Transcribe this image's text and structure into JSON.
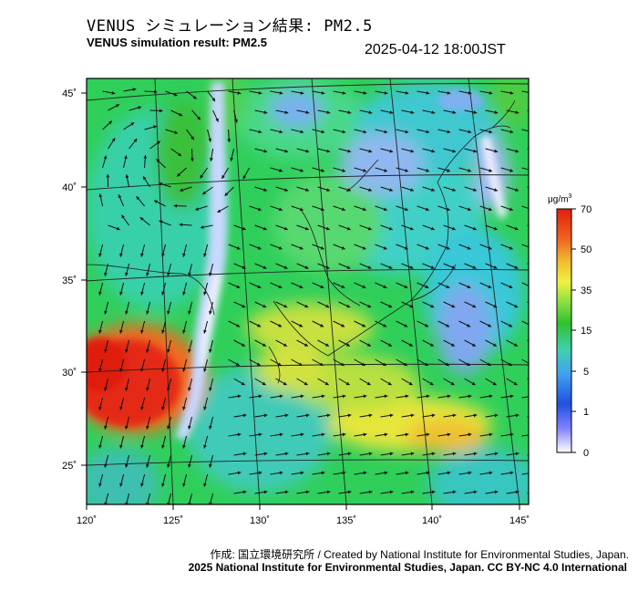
{
  "header": {
    "title_ja": "VENUS シミュレーション結果: PM2.5",
    "title_en": "VENUS simulation result: PM2.5",
    "timestamp": "2025-04-12 18:00JST"
  },
  "map": {
    "region": "East Asia / Japan",
    "lon_ticks": [
      "120˚",
      "125˚",
      "130˚",
      "135˚",
      "140˚",
      "145˚"
    ],
    "lat_ticks": [
      "45˚",
      "40˚",
      "35˚",
      "30˚",
      "25˚"
    ],
    "field": "PM2.5 concentration with wind vectors",
    "colors": {
      "very_low": "#f2f2ff",
      "low": "#4a7ff0",
      "moderate": "#2fc0d0",
      "medium": "#6cd86a",
      "high": "#3fbf3f",
      "elevated": "#e8e83a",
      "very_high": "#f07a2a",
      "extreme": "#e02a1a"
    }
  },
  "colorbar": {
    "unit_text": "μg/m",
    "unit_exp": "3",
    "ticks": [
      "70",
      "50",
      "35",
      "15",
      "5",
      "1",
      "0"
    ],
    "gradient": [
      "#e02010",
      "#f06020",
      "#f0c030",
      "#f0f040",
      "#90e040",
      "#30c030",
      "#40d0b0",
      "#40a0f0",
      "#2050e0",
      "#8080ff",
      "#ffffff"
    ]
  },
  "credit": {
    "line1": "作成: 国立環境研究所 / Created by National Institute for Environmental Studies, Japan.",
    "line2": "2025 National Institute for Environmental Studies, Japan. CC BY-NC 4.0 International"
  }
}
